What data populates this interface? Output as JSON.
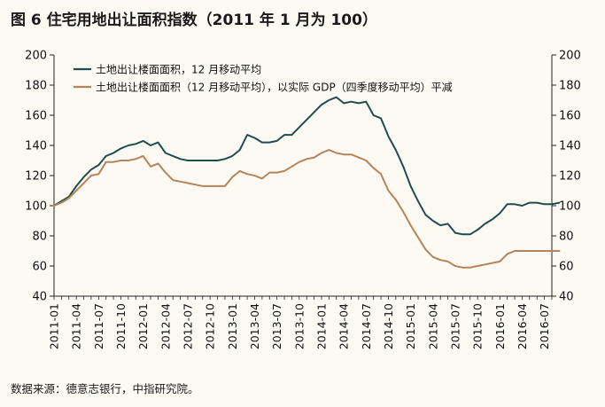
{
  "chart_data": {
    "type": "line",
    "title": "图 6  住宅用地出让面积指数（2011 年 1 月为 100）",
    "source": "数据来源：德意志银行，中指研究院。",
    "xlabel": "",
    "ylabel": "",
    "ylim": [
      40,
      200
    ],
    "yticks": [
      "40",
      "60",
      "80",
      "100",
      "120",
      "140",
      "160",
      "180",
      "200"
    ],
    "right_axis_mirror": true,
    "grid": false,
    "legend_position": "top-left",
    "x_tick_labels": [
      "2011-01",
      "2011-04",
      "2011-07",
      "2011-10",
      "2012-01",
      "2012-04",
      "2012-07",
      "2012-10",
      "2013-01",
      "2013-04",
      "2013-07",
      "2013-10",
      "2014-01",
      "2014-04",
      "2014-07",
      "2014-10",
      "2015-01",
      "2015-04",
      "2015-07",
      "2015-10",
      "2016-01",
      "2016-04",
      "2016-07"
    ],
    "x_start": "2011-01",
    "x_end": "2016-08",
    "series": [
      {
        "name": "土地出让楼面面积，12 月移动平均",
        "color": "#1f4e4a",
        "values": [
          100,
          103,
          106,
          113,
          119,
          124,
          127,
          133,
          135,
          138,
          140,
          141,
          143,
          140,
          142,
          135,
          133,
          131,
          130,
          130,
          130,
          130,
          130,
          131,
          133,
          137,
          147,
          145,
          142,
          142,
          143,
          147,
          147,
          152,
          157,
          162,
          167,
          170,
          172,
          168,
          169,
          168,
          169,
          160,
          158,
          146,
          137,
          126,
          113,
          103,
          94,
          90,
          87,
          88,
          82,
          81,
          81,
          84,
          88,
          91,
          95,
          101,
          101,
          100,
          102,
          102,
          101,
          101,
          102
        ]
      },
      {
        "name": "土地出让楼面面积（12 月移动平均），以实际 GDP（四季度移动平均）平减",
        "color": "#b5845a",
        "values": [
          100,
          102,
          105,
          110,
          115,
          120,
          121,
          129,
          129,
          130,
          130,
          131,
          133,
          126,
          128,
          122,
          117,
          116,
          115,
          114,
          113,
          113,
          113,
          113,
          119,
          123,
          121,
          120,
          118,
          122,
          122,
          123,
          126,
          129,
          131,
          132,
          135,
          137,
          135,
          134,
          134,
          132,
          130,
          125,
          121,
          110,
          104,
          96,
          87,
          79,
          71,
          66,
          64,
          63,
          60,
          59,
          59,
          60,
          61,
          62,
          63,
          68,
          70,
          70,
          70,
          70,
          70,
          70,
          70
        ]
      }
    ]
  }
}
